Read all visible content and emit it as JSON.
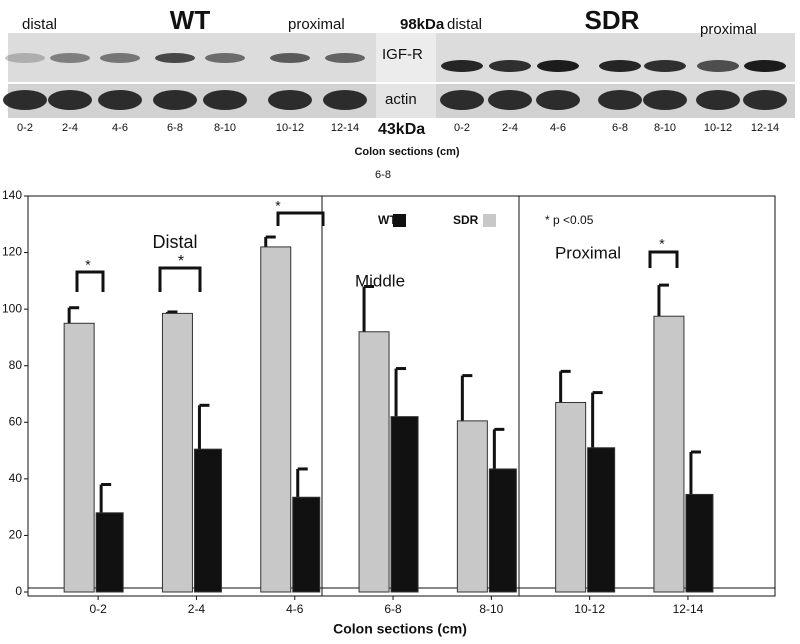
{
  "blot": {
    "wt_label": "WT",
    "sdr_label": "SDR",
    "wt_distal": "distal",
    "wt_proximal": "proximal",
    "sdr_distal": "distal",
    "sdr_proximal": "proximal",
    "kda_top": "98kDa",
    "kda_bottom": "43kDa",
    "igf_label": "IGF-R",
    "actin_label": "actin",
    "wt_lanes": [
      "0-2",
      "2-4",
      "4-6",
      "6-8",
      "8-10",
      "10-12",
      "12-14"
    ],
    "sdr_lanes": [
      "0-2",
      "2-4",
      "4-6",
      "6-8",
      "8-10",
      "10-12",
      "12-14"
    ],
    "x_label": "Colon sections (cm)",
    "stray_label": "6-8"
  },
  "chart_data": {
    "type": "bar",
    "x_label": "Colon sections (cm)",
    "categories": [
      "0-2",
      "2-4",
      "4-6",
      "6-8",
      "8-10",
      "10-12",
      "12-14"
    ],
    "series": [
      {
        "name": "SDR",
        "color": "#c8c8c8",
        "values": [
          95,
          98.5,
          122,
          92,
          60.5,
          67,
          97.5
        ],
        "errors": [
          5.5,
          0.5,
          3.5,
          16,
          16,
          11,
          11
        ]
      },
      {
        "name": "WT",
        "color": "#111111",
        "values": [
          28,
          50.5,
          33.5,
          62,
          43.5,
          51,
          34.5
        ],
        "errors": [
          10,
          15.5,
          10,
          17,
          14,
          19.5,
          15
        ]
      }
    ],
    "ylim": [
      0,
      140
    ],
    "yticks": [
      0,
      20,
      40,
      60,
      80,
      100,
      120,
      140
    ],
    "annotations": [
      "Distal",
      "Middle",
      "Proximal",
      "* p <0.05",
      "*",
      "*",
      "*",
      "*"
    ]
  }
}
